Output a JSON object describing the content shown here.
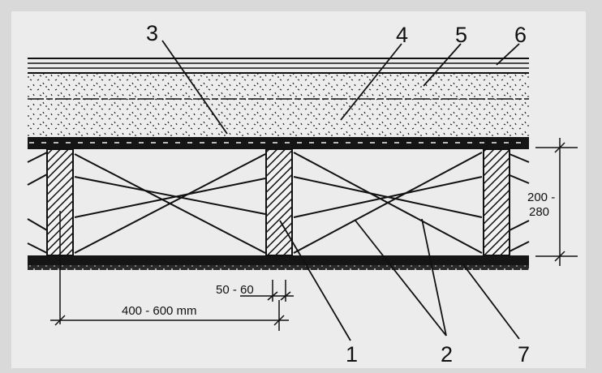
{
  "labels": {
    "l1": "1",
    "l2": "2",
    "l3": "3",
    "l4": "4",
    "l5": "5",
    "l6": "6",
    "l7": "7"
  },
  "dimensions": {
    "height_top": "200 -",
    "height_bottom": "280",
    "joist_width": "50 - 60",
    "spacing": "400 - 600 mm"
  },
  "colors": {
    "background": "#d9d9d9",
    "ink": "#111111",
    "paper": "#ececec"
  }
}
